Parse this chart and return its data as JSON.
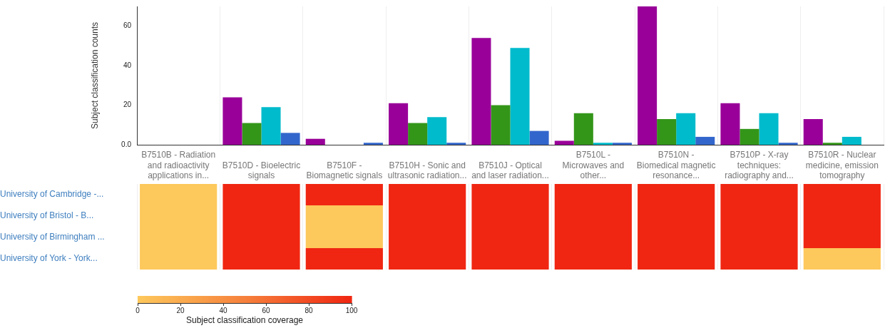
{
  "chart_data": [
    {
      "type": "bar",
      "ylabel": "Subject classification counts",
      "categories": [
        null,
        null,
        null,
        null,
        null,
        null,
        null,
        null,
        null
      ],
      "series": [
        {
          "color": "#990099",
          "values": [
            0,
            24,
            3,
            21,
            54,
            2,
            70,
            21,
            13
          ]
        },
        {
          "color": "#339619",
          "values": [
            0,
            11,
            0,
            11,
            20,
            16,
            13,
            8,
            1
          ]
        },
        {
          "color": "#00bbcc",
          "values": [
            0,
            19,
            0,
            14,
            49,
            1,
            16,
            16,
            4
          ]
        },
        {
          "color": "#3366cc",
          "values": [
            0,
            6,
            1,
            1,
            7,
            1,
            4,
            1,
            0
          ]
        }
      ],
      "ylim": [
        0,
        70
      ],
      "yticks": [
        {
          "value": 0,
          "label": "0.0"
        },
        20,
        40,
        60
      ],
      "grid": "x",
      "tick_labels": "y"
    },
    {
      "type": "heatmap",
      "clabel": "Subject classification coverage",
      "categories": [
        "B7510B - Radiation and radioactivity applications in...",
        "B7510D - Bioelectric signals",
        "B7510F - Biomagnetic signals",
        "B7510H - Sonic and ultrasonic radiation...",
        "B7510J - Optical and laser radiation...",
        "B7510L - Microwaves and other...",
        "B7510N - Biomedical magnetic resonance...",
        "B7510P - X-ray techniques: radiography and...",
        "B7510R - Nuclear medicine, emission tomography"
      ],
      "y_categories": [
        "University of Cambridge -...",
        "University of Bristol - B...",
        "University of Birmingham ...",
        "University of York - York..."
      ],
      "cells": [
        [
          0,
          100,
          100,
          100,
          100,
          100,
          100,
          100,
          100
        ],
        [
          0,
          100,
          0,
          100,
          100,
          100,
          100,
          100,
          100
        ],
        [
          0,
          100,
          0,
          100,
          100,
          100,
          100,
          100,
          100
        ],
        [
          0,
          100,
          100,
          100,
          100,
          100,
          100,
          100,
          0
        ]
      ],
      "clim": [
        0,
        100
      ],
      "cticks": [
        0,
        20,
        40,
        60,
        80,
        100
      ],
      "grid": "x"
    }
  ]
}
